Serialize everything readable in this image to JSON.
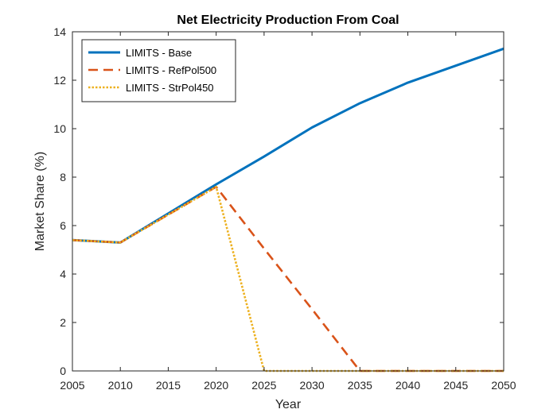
{
  "chart_data": {
    "type": "line",
    "title": "Net Electricity Production From Coal",
    "xlabel": "Year",
    "ylabel": "Market Share (%)",
    "xlim": [
      2005,
      2050
    ],
    "ylim": [
      0,
      14
    ],
    "xticks": [
      2005,
      2010,
      2015,
      2020,
      2025,
      2030,
      2035,
      2040,
      2045,
      2050
    ],
    "yticks": [
      0,
      2,
      4,
      6,
      8,
      10,
      12,
      14
    ],
    "grid": false,
    "legend_position": "top-left",
    "series": [
      {
        "name": "LIMITS - Base",
        "color": "#0072BD",
        "style": "solid",
        "x": [
          2005,
          2010,
          2015,
          2020,
          2025,
          2030,
          2035,
          2040,
          2045,
          2050
        ],
        "y": [
          5.4,
          5.3,
          6.5,
          7.7,
          8.85,
          10.05,
          11.05,
          11.9,
          12.6,
          13.3
        ]
      },
      {
        "name": "LIMITS - RefPol500",
        "color": "#D95319",
        "style": "dashed",
        "x": [
          2005,
          2010,
          2015,
          2020,
          2025,
          2030,
          2035,
          2040,
          2045,
          2050
        ],
        "y": [
          5.4,
          5.3,
          6.45,
          7.6,
          5.05,
          2.55,
          0,
          0,
          0,
          0
        ]
      },
      {
        "name": "LIMITS - StrPol450",
        "color": "#EDB120",
        "style": "dotted",
        "x": [
          2005,
          2010,
          2015,
          2020,
          2025,
          2030,
          2035,
          2040,
          2045,
          2050
        ],
        "y": [
          5.4,
          5.3,
          6.45,
          7.6,
          0,
          0,
          0,
          0,
          0,
          0
        ]
      }
    ]
  }
}
